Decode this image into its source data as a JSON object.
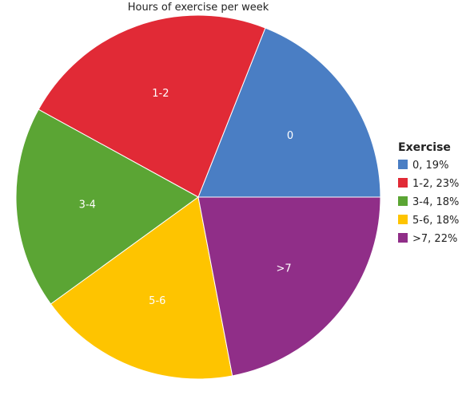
{
  "chart_data": {
    "type": "pie",
    "title": "Hours of exercise per week",
    "legend_title": "Exercise",
    "legend_position": "right",
    "slices": [
      {
        "label": "0",
        "value": 19,
        "legend": "0, 19%",
        "color": "#4a7ec4"
      },
      {
        "label": "1-2",
        "value": 23,
        "legend": "1-2, 23%",
        "color": "#e12a36"
      },
      {
        "label": "3-4",
        "value": 18,
        "legend": "3-4, 18%",
        "color": "#5ba534"
      },
      {
        "label": "5-6",
        "value": 18,
        "legend": "5-6, 18%",
        "color": "#fec400"
      },
      {
        "label": ">7",
        "value": 22,
        "legend": ">7, 22%",
        "color": "#902e88"
      }
    ]
  }
}
